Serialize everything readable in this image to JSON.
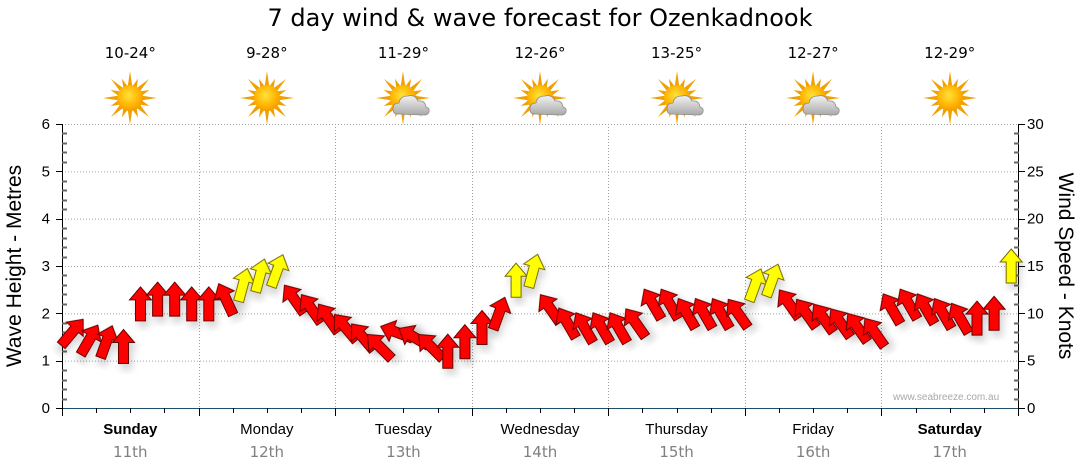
{
  "title": "7 day wind & wave forecast for Ozenkadnook",
  "watermark": "www.seabreeze.com.au",
  "colors": {
    "strong_wind": "#ff0000",
    "moderate_wind": "#ffff00",
    "axis": "#000000",
    "baseline": "#1f4e6e",
    "grid": "#a0a0a0",
    "date_text": "#808080"
  },
  "days": [
    {
      "name": "Sunday",
      "date": "11th",
      "temp": "10-24°",
      "icon": "sunny-icon",
      "bold": true
    },
    {
      "name": "Monday",
      "date": "12th",
      "temp": "9-28°",
      "icon": "sunny-icon",
      "bold": false
    },
    {
      "name": "Tuesday",
      "date": "13th",
      "temp": "11-29°",
      "icon": "partly-cloudy-icon",
      "bold": false
    },
    {
      "name": "Wednesday",
      "date": "14th",
      "temp": "12-26°",
      "icon": "partly-cloudy-icon",
      "bold": false
    },
    {
      "name": "Thursday",
      "date": "15th",
      "temp": "13-25°",
      "icon": "partly-cloudy-icon",
      "bold": false
    },
    {
      "name": "Friday",
      "date": "16th",
      "temp": "12-27°",
      "icon": "partly-cloudy-icon",
      "bold": false
    },
    {
      "name": "Saturday",
      "date": "17th",
      "temp": "12-29°",
      "icon": "sunny-icon",
      "bold": true
    }
  ],
  "chart_data": {
    "type": "scatter",
    "title": "7 day wind & wave forecast for Ozenkadnook",
    "ylabel_left": "Wave Height - Metres",
    "ylabel_right": "Wind Speed - Knots",
    "ylim_left": [
      0,
      6
    ],
    "ylim_right": [
      0,
      30
    ],
    "yticks_left": [
      "0",
      "1",
      "2",
      "3",
      "4",
      "5",
      "6"
    ],
    "yticks_right": [
      "0",
      "5",
      "10",
      "15",
      "20",
      "25",
      "30"
    ],
    "grid": true,
    "x_categories": [
      "Sunday 11th",
      "Monday 12th",
      "Tuesday 13th",
      "Wednesday 14th",
      "Thursday 15th",
      "Friday 16th",
      "Saturday 17th"
    ],
    "points_per_day": 8,
    "series": [
      {
        "name": "Wind",
        "description": "wind arrows every 3 hours; value = wind speed in knots, dir = arrow heading in degrees (0 = pointing up), color = wind strength class",
        "values": [
          {
            "kn": 8.0,
            "dir": 40,
            "color": "red"
          },
          {
            "kn": 7.2,
            "dir": 30,
            "color": "red"
          },
          {
            "kn": 7.0,
            "dir": 20,
            "color": "red"
          },
          {
            "kn": 6.5,
            "dir": 0,
            "color": "red"
          },
          {
            "kn": 11.0,
            "dir": 0,
            "color": "red"
          },
          {
            "kn": 11.5,
            "dir": 0,
            "color": "red"
          },
          {
            "kn": 11.5,
            "dir": 0,
            "color": "red"
          },
          {
            "kn": 11.0,
            "dir": 0,
            "color": "red"
          },
          {
            "kn": 11.0,
            "dir": 0,
            "color": "red"
          },
          {
            "kn": 11.5,
            "dir": -25,
            "color": "red"
          },
          {
            "kn": 13.0,
            "dir": 15,
            "color": "yellow"
          },
          {
            "kn": 14.0,
            "dir": 15,
            "color": "yellow"
          },
          {
            "kn": 14.5,
            "dir": 20,
            "color": "yellow"
          },
          {
            "kn": 11.5,
            "dir": -35,
            "color": "red"
          },
          {
            "kn": 10.5,
            "dir": -35,
            "color": "red"
          },
          {
            "kn": 9.5,
            "dir": -35,
            "color": "red"
          },
          {
            "kn": 8.5,
            "dir": -40,
            "color": "red"
          },
          {
            "kn": 7.5,
            "dir": -40,
            "color": "red"
          },
          {
            "kn": 6.5,
            "dir": -45,
            "color": "red"
          },
          {
            "kn": 8.0,
            "dir": -70,
            "color": "red"
          },
          {
            "kn": 7.5,
            "dir": -60,
            "color": "red"
          },
          {
            "kn": 6.5,
            "dir": -45,
            "color": "red"
          },
          {
            "kn": 6.0,
            "dir": 0,
            "color": "red"
          },
          {
            "kn": 7.0,
            "dir": 0,
            "color": "red"
          },
          {
            "kn": 8.5,
            "dir": 0,
            "color": "red"
          },
          {
            "kn": 10.0,
            "dir": 20,
            "color": "red"
          },
          {
            "kn": 13.5,
            "dir": 0,
            "color": "yellow"
          },
          {
            "kn": 14.5,
            "dir": 15,
            "color": "yellow"
          },
          {
            "kn": 10.5,
            "dir": -35,
            "color": "red"
          },
          {
            "kn": 9.0,
            "dir": -30,
            "color": "red"
          },
          {
            "kn": 8.5,
            "dir": -30,
            "color": "red"
          },
          {
            "kn": 8.5,
            "dir": -30,
            "color": "red"
          },
          {
            "kn": 8.5,
            "dir": -30,
            "color": "red"
          },
          {
            "kn": 9.0,
            "dir": -35,
            "color": "red"
          },
          {
            "kn": 11.0,
            "dir": -30,
            "color": "red"
          },
          {
            "kn": 11.0,
            "dir": -30,
            "color": "red"
          },
          {
            "kn": 10.0,
            "dir": -30,
            "color": "red"
          },
          {
            "kn": 10.0,
            "dir": -30,
            "color": "red"
          },
          {
            "kn": 10.0,
            "dir": -30,
            "color": "red"
          },
          {
            "kn": 10.0,
            "dir": -35,
            "color": "red"
          },
          {
            "kn": 13.0,
            "dir": 20,
            "color": "yellow"
          },
          {
            "kn": 13.5,
            "dir": 20,
            "color": "yellow"
          },
          {
            "kn": 11.0,
            "dir": -35,
            "color": "red"
          },
          {
            "kn": 10.0,
            "dir": -35,
            "color": "red"
          },
          {
            "kn": 9.5,
            "dir": -35,
            "color": "red"
          },
          {
            "kn": 9.0,
            "dir": -35,
            "color": "red"
          },
          {
            "kn": 8.5,
            "dir": -35,
            "color": "red"
          },
          {
            "kn": 8.0,
            "dir": -35,
            "color": "red"
          },
          {
            "kn": 10.5,
            "dir": -30,
            "color": "red"
          },
          {
            "kn": 11.0,
            "dir": -30,
            "color": "red"
          },
          {
            "kn": 10.5,
            "dir": -30,
            "color": "red"
          },
          {
            "kn": 10.0,
            "dir": -30,
            "color": "red"
          },
          {
            "kn": 9.5,
            "dir": -30,
            "color": "red"
          },
          {
            "kn": 9.5,
            "dir": 0,
            "color": "red"
          },
          {
            "kn": 10.0,
            "dir": 0,
            "color": "red"
          },
          {
            "kn": 15.0,
            "dir": 0,
            "color": "yellow"
          }
        ]
      }
    ]
  }
}
